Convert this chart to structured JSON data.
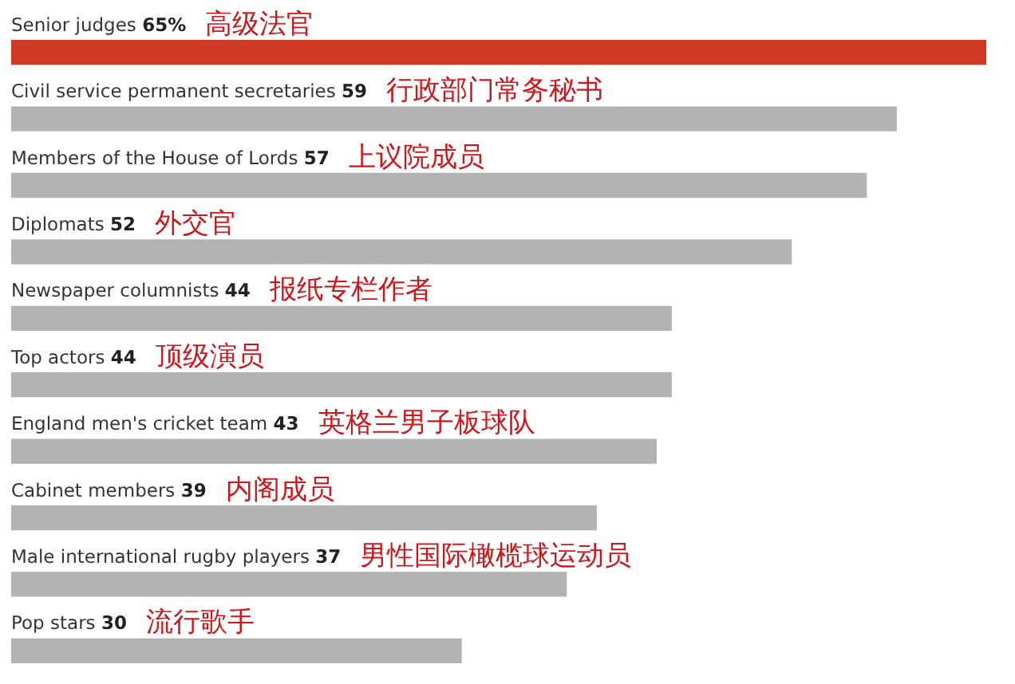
{
  "chart_data": {
    "type": "bar",
    "orientation": "horizontal",
    "categories": [
      "Senior judges",
      "Civil service permanent secretaries",
      "Members of the House of Lords",
      "Diplomats",
      "Newspaper columnists",
      "Top actors",
      "England men's cricket team",
      "Cabinet members",
      "Male international rugby players",
      "Pop stars"
    ],
    "values": [
      65,
      59,
      57,
      52,
      44,
      44,
      43,
      39,
      37,
      30
    ],
    "value_labels": [
      "65%",
      "59",
      "57",
      "52",
      "44",
      "44",
      "43",
      "39",
      "37",
      "30"
    ],
    "colors": [
      "#cf3a26",
      "#b3b3b4",
      "#b3b3b4",
      "#b3b3b4",
      "#b3b3b4",
      "#b3b3b4",
      "#b3b3b4",
      "#b3b3b4",
      "#b3b3b4",
      "#b3b3b4"
    ],
    "xlim": [
      0,
      65
    ],
    "tick_labels": false,
    "legend": false,
    "annotations": [
      "高级法官",
      "行政部门常务秘书",
      "上议院成员",
      "外交官",
      "报纸专栏作者",
      "顶级演员",
      "英格兰男子板球队",
      "内阁成员",
      "男性国际橄榄球运动员",
      "流行歌手"
    ]
  }
}
